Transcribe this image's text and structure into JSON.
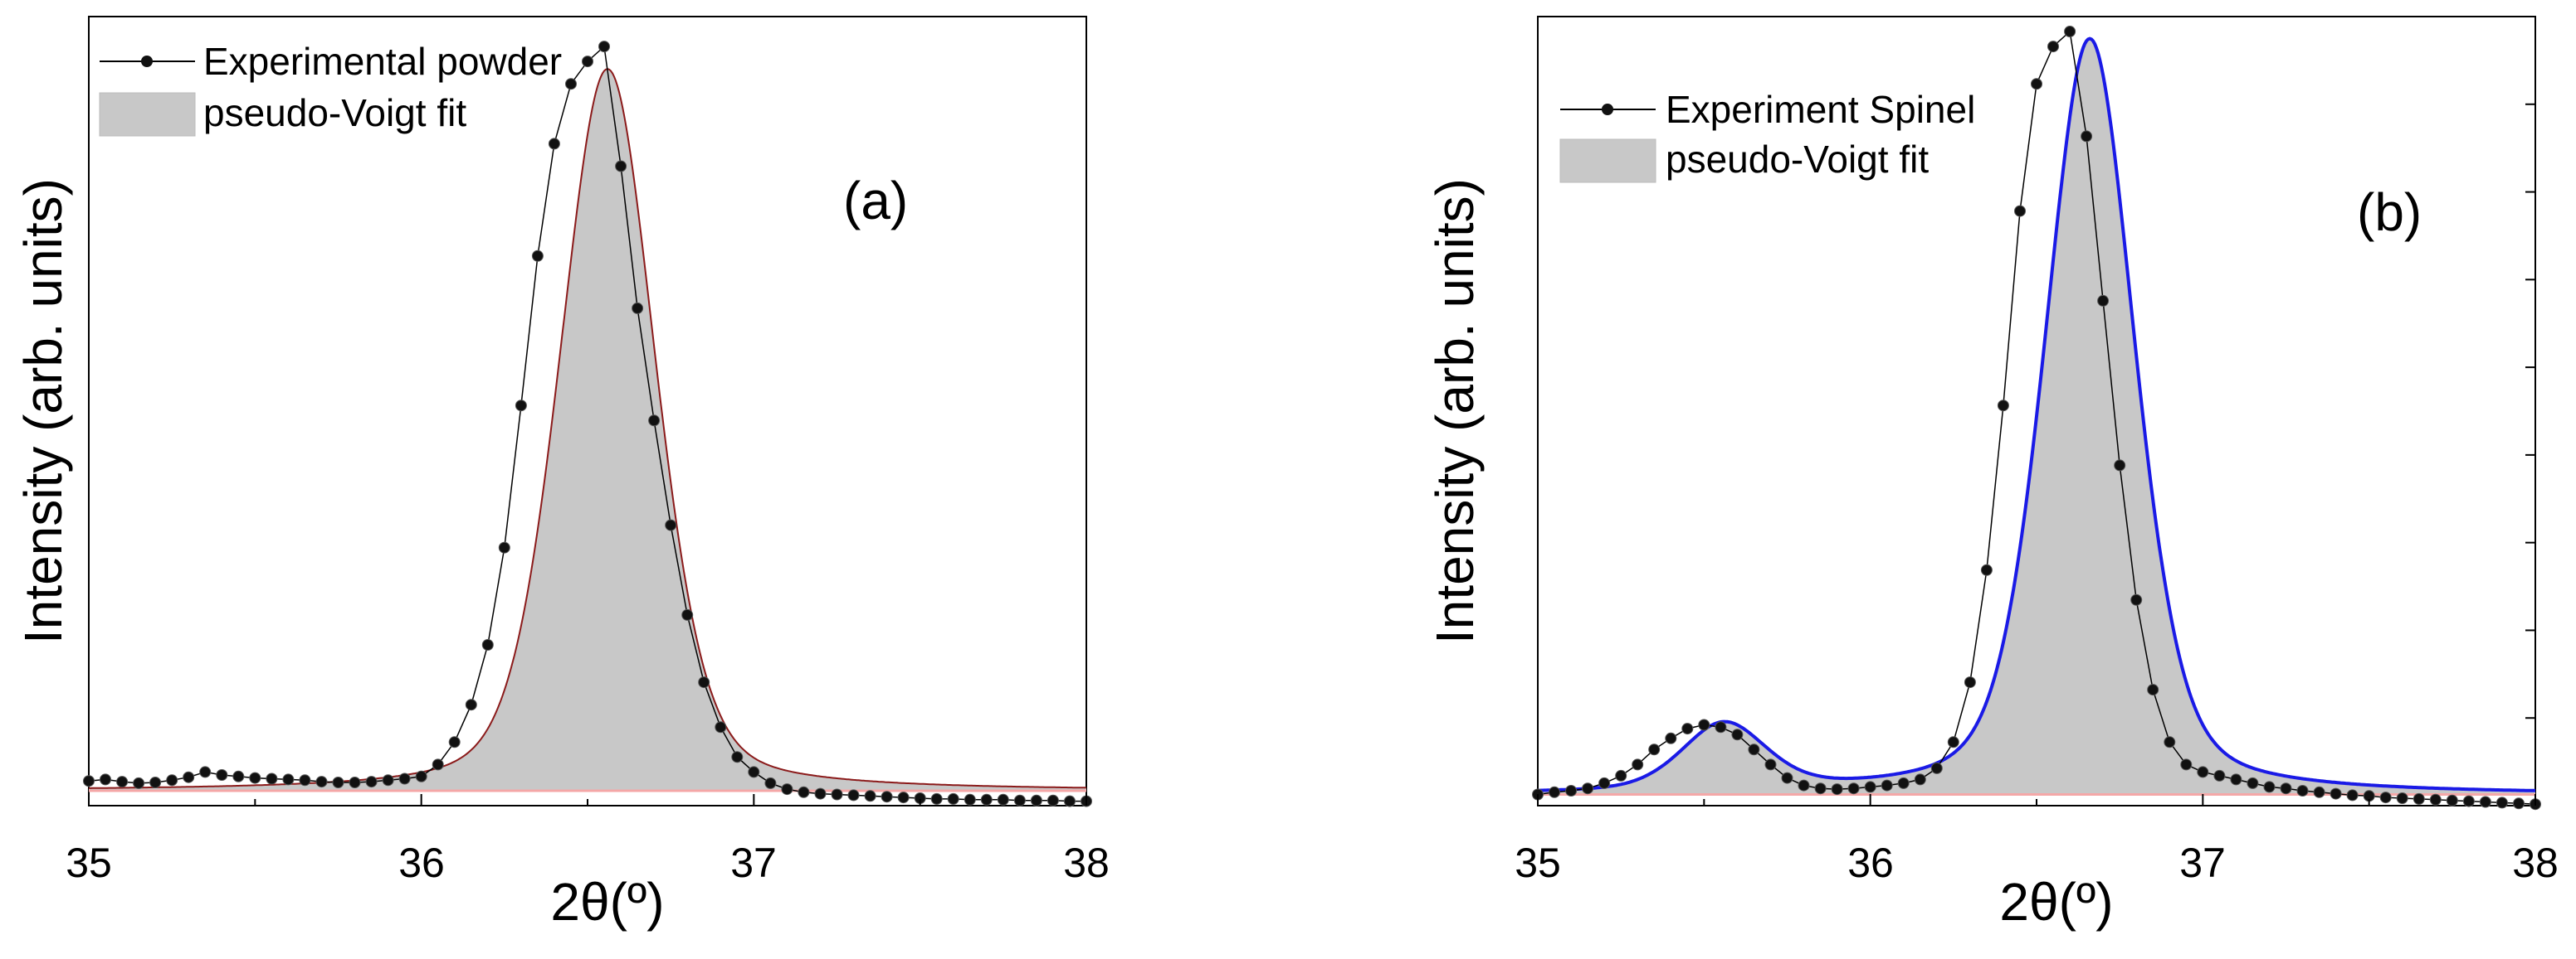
{
  "chart_data": [
    {
      "type": "line",
      "panel_label": "(a)",
      "xlabel": "2θ(º)",
      "ylabel": "Intensity (arb. units)",
      "xlim": [
        35,
        38
      ],
      "ylim": [
        -0.015,
        1.04
      ],
      "xticks": [
        "35",
        "36",
        "37",
        "38"
      ],
      "yticks_labeled": false,
      "grid": false,
      "legend_position": "top-left",
      "legend": [
        "Experimental powder",
        "pseudo-Voigt fit"
      ],
      "series": [
        {
          "name": "Experimental powder",
          "style": "line-with-points",
          "color": "#000000",
          "x": [
            35.0,
            35.05,
            35.1,
            35.15,
            35.2,
            35.25,
            35.3,
            35.35,
            35.4,
            35.45,
            35.5,
            35.55,
            35.6,
            35.65,
            35.7,
            35.75,
            35.8,
            35.85,
            35.9,
            35.95,
            36.0,
            36.05,
            36.1,
            36.15,
            36.2,
            36.25,
            36.3,
            36.35,
            36.4,
            36.45,
            36.5,
            36.55,
            36.6,
            36.65,
            36.7,
            36.75,
            36.8,
            36.85,
            36.9,
            36.95,
            37.0,
            37.05,
            37.1,
            37.15,
            37.2,
            37.25,
            37.3,
            37.35,
            37.4,
            37.45,
            37.5,
            37.55,
            37.6,
            37.65,
            37.7,
            37.75,
            37.8,
            37.85,
            37.9,
            37.95,
            38.0
          ],
          "values": [
            0.018,
            0.02,
            0.017,
            0.015,
            0.016,
            0.019,
            0.023,
            0.03,
            0.026,
            0.024,
            0.022,
            0.021,
            0.02,
            0.019,
            0.017,
            0.016,
            0.016,
            0.017,
            0.019,
            0.021,
            0.024,
            0.04,
            0.07,
            0.12,
            0.2,
            0.33,
            0.52,
            0.72,
            0.87,
            0.95,
            0.98,
            1.0,
            0.84,
            0.65,
            0.5,
            0.36,
            0.24,
            0.15,
            0.09,
            0.05,
            0.03,
            0.015,
            0.007,
            0.003,
            0.001,
            0.0,
            -0.001,
            -0.002,
            -0.003,
            -0.004,
            -0.005,
            -0.006,
            -0.006,
            -0.007,
            -0.007,
            -0.007,
            -0.008,
            -0.008,
            -0.008,
            -0.009,
            -0.009
          ]
        },
        {
          "name": "pseudo-Voigt fit",
          "style": "filled",
          "fill_color": "#c8c8c8",
          "line_color": "#8b1a1a",
          "baseline_color": "#f4a7a7",
          "baseline": 0.005,
          "center": 36.56,
          "fwhm": 0.34,
          "amplitude": 0.965,
          "eta": 0.3
        }
      ]
    },
    {
      "type": "line",
      "panel_label": "(b)",
      "xlabel": "2θ(º)",
      "ylabel": "Intensity (arb. units)",
      "xlim": [
        35,
        38
      ],
      "ylim": [
        -0.015,
        1.04
      ],
      "xticks": [
        "35",
        "36",
        "37",
        "38"
      ],
      "yticks_labeled": false,
      "grid": false,
      "legend_position": "top-left",
      "legend": [
        "Experiment Spinel",
        "pseudo-Voigt fit"
      ],
      "series": [
        {
          "name": "Experiment Spinel",
          "style": "line-with-points",
          "color": "#000000",
          "x": [
            35.0,
            35.05,
            35.1,
            35.15,
            35.2,
            35.25,
            35.3,
            35.35,
            35.4,
            35.45,
            35.5,
            35.55,
            35.6,
            35.65,
            35.7,
            35.75,
            35.8,
            35.85,
            35.9,
            35.95,
            36.0,
            36.05,
            36.1,
            36.15,
            36.2,
            36.25,
            36.3,
            36.35,
            36.4,
            36.45,
            36.5,
            36.55,
            36.6,
            36.65,
            36.7,
            36.75,
            36.8,
            36.85,
            36.9,
            36.95,
            37.0,
            37.05,
            37.1,
            37.15,
            37.2,
            37.25,
            37.3,
            37.35,
            37.4,
            37.45,
            37.5,
            37.55,
            37.6,
            37.65,
            37.7,
            37.75,
            37.8,
            37.85,
            37.9,
            37.95,
            38.0
          ],
          "values": [
            0.0,
            0.003,
            0.005,
            0.008,
            0.015,
            0.025,
            0.04,
            0.06,
            0.075,
            0.088,
            0.093,
            0.09,
            0.08,
            0.06,
            0.04,
            0.022,
            0.012,
            0.008,
            0.007,
            0.008,
            0.01,
            0.012,
            0.015,
            0.02,
            0.035,
            0.07,
            0.15,
            0.3,
            0.52,
            0.78,
            0.95,
            1.0,
            1.02,
            0.88,
            0.66,
            0.44,
            0.26,
            0.14,
            0.07,
            0.04,
            0.03,
            0.025,
            0.02,
            0.015,
            0.01,
            0.008,
            0.005,
            0.003,
            0.001,
            -0.001,
            -0.002,
            -0.004,
            -0.005,
            -0.006,
            -0.007,
            -0.008,
            -0.009,
            -0.01,
            -0.011,
            -0.012,
            -0.013
          ]
        },
        {
          "name": "pseudo-Voigt fit",
          "style": "filled",
          "fill_color": "#c8c8c8",
          "line_color": "#1a1ae6",
          "baseline_color": "#f4a7a7",
          "baseline": 0.0,
          "peaks": [
            {
              "center": 36.66,
              "fwhm": 0.32,
              "amplitude": 1.01,
              "eta": 0.35
            },
            {
              "center": 35.56,
              "fwhm": 0.3,
              "amplitude": 0.09,
              "eta": 0.35
            }
          ]
        }
      ]
    }
  ]
}
